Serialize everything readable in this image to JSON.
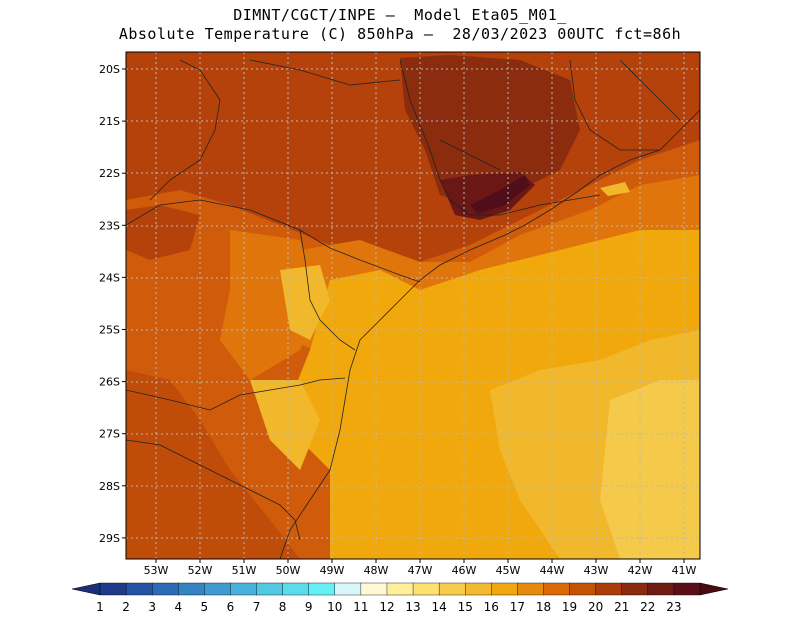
{
  "header": {
    "line1": "DIMNT/CGCT/INPE –  Model Eta05_M01_",
    "line2": "Absolute Temperature (C) 850hPa –  28/03/2023 00UTC fct=86h"
  },
  "map": {
    "lat_ticks": [
      "20S",
      "21S",
      "22S",
      "23S",
      "24S",
      "25S",
      "26S",
      "27S",
      "28S",
      "29S"
    ],
    "lon_ticks": [
      "53W",
      "52W",
      "51W",
      "50W",
      "49W",
      "48W",
      "47W",
      "46W",
      "45W",
      "44W",
      "43W",
      "42W",
      "41W"
    ],
    "lat_range": [
      -29.4,
      -19.8
    ],
    "lon_range": [
      -53.6,
      -40.6
    ],
    "grid": true
  },
  "colorbar": {
    "labels": [
      "1",
      "2",
      "3",
      "4",
      "5",
      "6",
      "7",
      "8",
      "9",
      "10",
      "11",
      "12",
      "13",
      "14",
      "15",
      "16",
      "17",
      "18",
      "19",
      "20",
      "21",
      "22",
      "23"
    ],
    "colors": [
      "#1f3a8a",
      "#2553a3",
      "#2d6bb6",
      "#3683c4",
      "#3f9bcf",
      "#48b2da",
      "#52c8e3",
      "#5adcea",
      "#66f0f5",
      "#d8f6f8",
      "#fff8d4",
      "#ffee9a",
      "#fde070",
      "#f7cc4e",
      "#f2b930",
      "#f0a70d",
      "#e68a0c",
      "#d96a07",
      "#c45305",
      "#a93e0a",
      "#8a2a0f",
      "#6e1b14",
      "#5a0f18"
    ],
    "lower_arrow": "#1b2f78",
    "upper_arrow": "#4a0a12"
  }
}
